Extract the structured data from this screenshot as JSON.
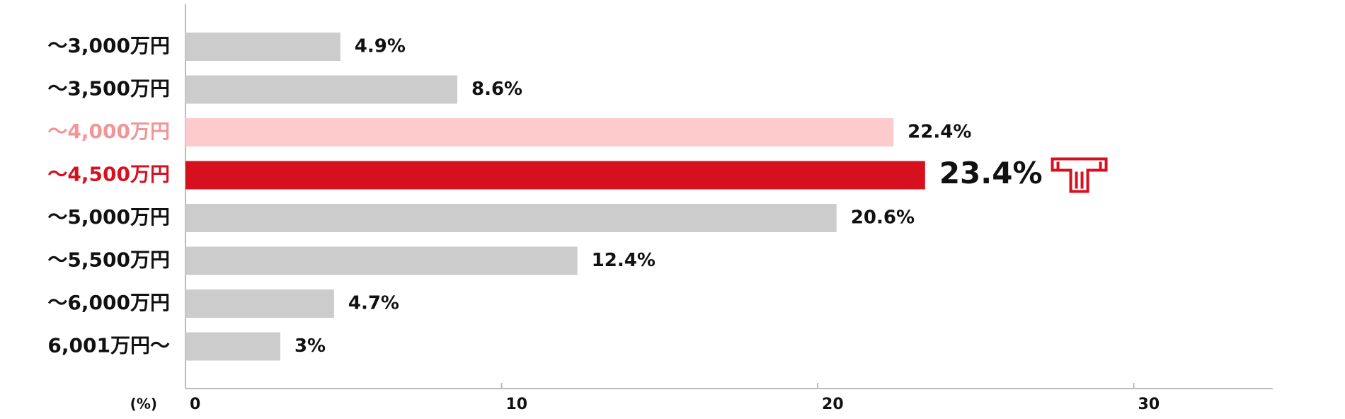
{
  "chart_data": {
    "type": "bar",
    "orientation": "horizontal",
    "categories": [
      "〜3,000万円",
      "〜3,500万円",
      "〜4,000万円",
      "〜4,500万円",
      "〜5,000万円",
      "〜5,500万円",
      "〜6,000万円",
      "6,001万円〜"
    ],
    "values": [
      4.9,
      8.6,
      22.4,
      23.4,
      20.6,
      12.4,
      4.7,
      3
    ],
    "value_labels": [
      "4.9%",
      "8.6%",
      "22.4%",
      "23.4%",
      "20.6%",
      "12.4%",
      "4.7%",
      "3%"
    ],
    "colors": [
      "#cccccc",
      "#cccccc",
      "#fdcbcb",
      "#d7101f",
      "#cccccc",
      "#cccccc",
      "#cccccc",
      "#cccccc"
    ],
    "label_colors": [
      "#111111",
      "#111111",
      "#f29597",
      "#d7101f",
      "#111111",
      "#111111",
      "#111111",
      "#111111"
    ],
    "highlight": 3,
    "x_unit": "(%)",
    "xlim": [
      0,
      34.4
    ],
    "xticks": [
      0,
      10,
      20,
      30
    ],
    "grid": false
  }
}
